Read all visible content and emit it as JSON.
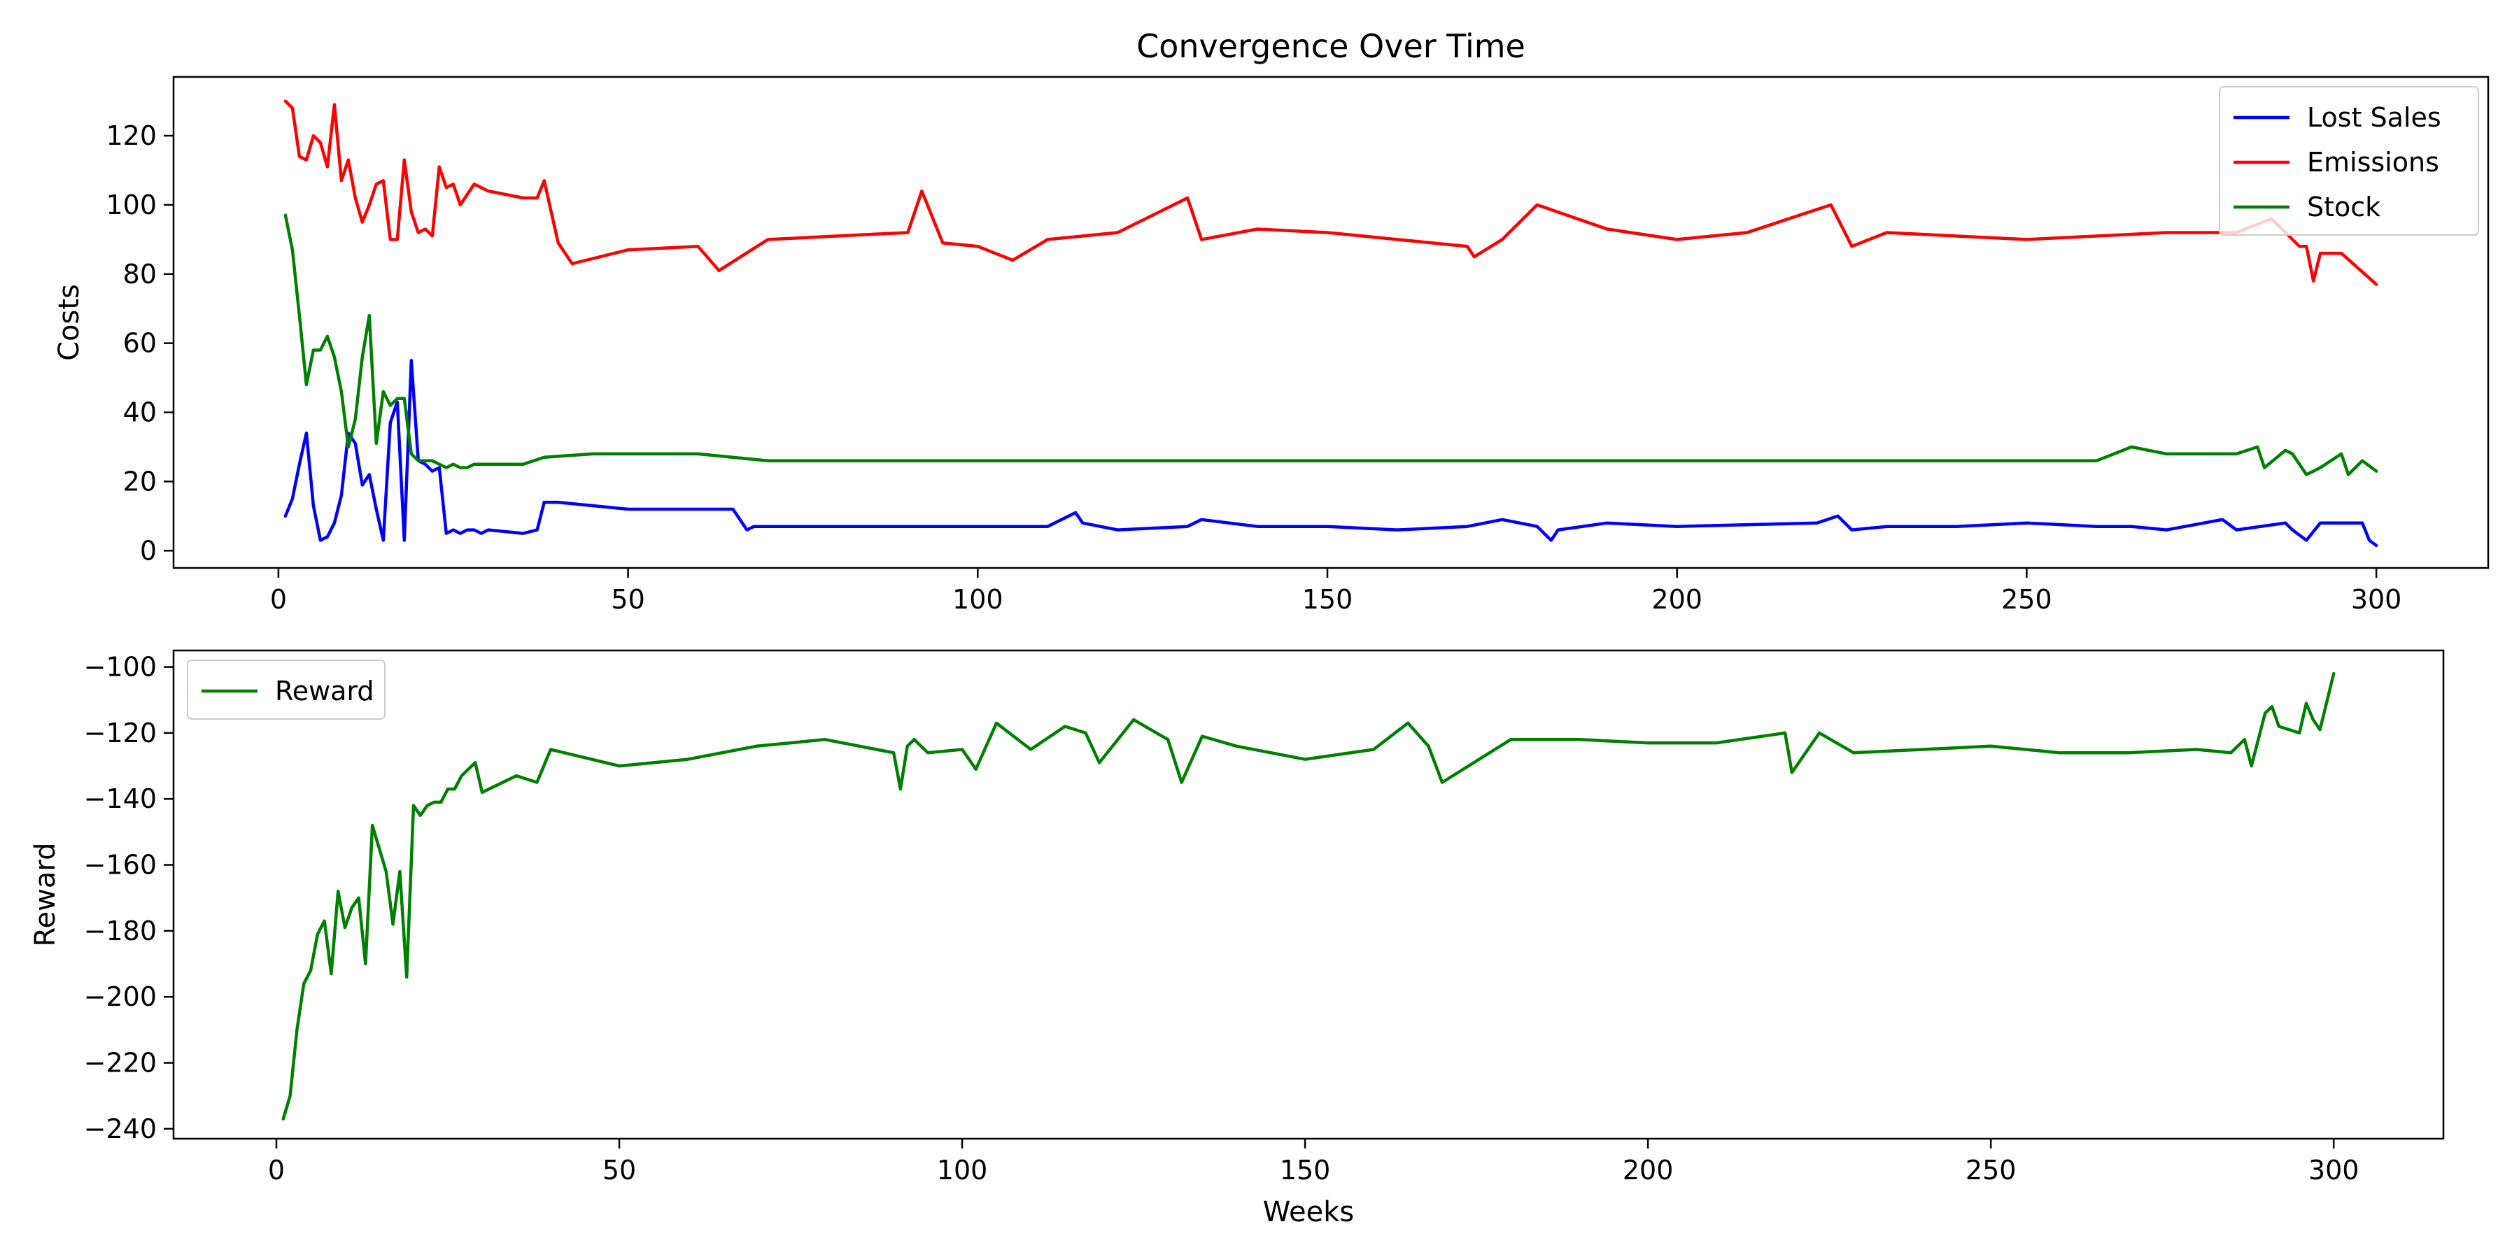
{
  "chart_data": [
    {
      "type": "line",
      "title": "Convergence Over Time",
      "xlabel": "",
      "ylabel": "Costs",
      "xlim": [
        -15,
        316
      ],
      "ylim": [
        -5,
        137
      ],
      "xticks": [
        0,
        50,
        100,
        150,
        200,
        250,
        300
      ],
      "yticks": [
        0,
        20,
        40,
        60,
        80,
        100,
        120
      ],
      "legend": "top-right",
      "grid": false,
      "series": [
        {
          "name": "Lost Sales",
          "color": "#0000ff",
          "x": [
            1,
            2,
            3,
            4,
            5,
            6,
            7,
            8,
            9,
            10,
            11,
            12,
            13,
            14,
            15,
            16,
            17,
            18,
            19,
            20,
            21,
            22,
            23,
            24,
            25,
            26,
            27,
            28,
            29,
            30,
            35,
            37,
            38,
            40,
            50,
            60,
            65,
            67,
            68,
            70,
            80,
            90,
            100,
            110,
            114,
            115,
            120,
            130,
            132,
            140,
            150,
            160,
            170,
            175,
            180,
            182,
            183,
            190,
            200,
            220,
            223,
            225,
            230,
            240,
            250,
            260,
            265,
            270,
            278,
            280,
            287,
            288,
            290,
            292,
            295,
            298,
            299,
            300
          ],
          "y": [
            10,
            15,
            25,
            34,
            13,
            3,
            4,
            8,
            16,
            34,
            31,
            19,
            22,
            12,
            3,
            37,
            43,
            3,
            55,
            26,
            25,
            23,
            24,
            5,
            6,
            5,
            6,
            6,
            5,
            6,
            5,
            6,
            14,
            14,
            12,
            12,
            12,
            6,
            7,
            7,
            7,
            7,
            7,
            7,
            11,
            8,
            6,
            7,
            9,
            7,
            7,
            6,
            7,
            9,
            7,
            3,
            6,
            8,
            7,
            8,
            10,
            6,
            7,
            7,
            8,
            7,
            7,
            6,
            9,
            6,
            8,
            6,
            3,
            8,
            8,
            8,
            3,
            1.5
          ]
        },
        {
          "name": "Emissions",
          "color": "#ff0000",
          "x": [
            1,
            2,
            3,
            4,
            5,
            6,
            7,
            8,
            9,
            10,
            11,
            12,
            13,
            14,
            15,
            16,
            17,
            18,
            19,
            20,
            21,
            22,
            23,
            24,
            25,
            26,
            27,
            28,
            29,
            30,
            35,
            37,
            38,
            40,
            42,
            50,
            60,
            63,
            70,
            80,
            90,
            92,
            95,
            100,
            105,
            110,
            120,
            130,
            132,
            140,
            150,
            160,
            170,
            171,
            175,
            180,
            190,
            200,
            210,
            222,
            225,
            230,
            250,
            270,
            280,
            285,
            289,
            290,
            291,
            292,
            295,
            300
          ],
          "y": [
            130,
            128,
            114,
            113,
            120,
            118,
            111,
            129,
            107,
            113,
            102,
            95,
            100,
            106,
            107,
            90,
            90,
            113,
            98,
            92,
            93,
            91,
            111,
            105,
            106,
            100,
            103,
            106,
            105,
            104,
            102,
            102,
            107,
            89,
            83,
            87,
            88,
            81,
            90,
            91,
            92,
            104,
            89,
            88,
            84,
            90,
            92,
            102,
            90,
            93,
            92,
            90,
            88,
            85,
            90,
            100,
            93,
            90,
            92,
            100,
            88,
            92,
            90,
            92,
            92,
            96,
            88,
            88,
            78,
            86,
            86,
            77
          ]
        },
        {
          "name": "Stock",
          "color": "#008000",
          "x": [
            1,
            2,
            3,
            4,
            5,
            6,
            7,
            8,
            9,
            10,
            11,
            12,
            13,
            14,
            15,
            16,
            17,
            18,
            19,
            20,
            21,
            22,
            23,
            24,
            25,
            26,
            27,
            28,
            29,
            30,
            35,
            38,
            45,
            50,
            60,
            70,
            80,
            100,
            150,
            200,
            250,
            260,
            265,
            270,
            280,
            283,
            284,
            287,
            288,
            290,
            291,
            292,
            295,
            296,
            298,
            300
          ],
          "y": [
            97,
            87,
            68,
            48,
            58,
            58,
            62,
            56,
            46,
            30,
            38,
            56,
            68,
            31,
            46,
            42,
            44,
            44,
            28,
            26,
            26,
            26,
            25,
            24,
            25,
            24,
            24,
            25,
            25,
            25,
            25,
            27,
            28,
            28,
            28,
            26,
            26,
            26,
            26,
            26,
            26,
            26,
            30,
            28,
            28,
            30,
            24,
            29,
            28,
            22,
            23,
            24,
            28,
            22,
            26,
            23
          ]
        }
      ]
    },
    {
      "type": "line",
      "title": "",
      "xlabel": "Weeks",
      "ylabel": "Reward",
      "xlim": [
        -15,
        316
      ],
      "ylim": [
        -243,
        -95
      ],
      "xticks": [
        0,
        50,
        100,
        150,
        200,
        250,
        300
      ],
      "yticks": [
        -240,
        -220,
        -200,
        -180,
        -160,
        -140,
        -120,
        -100
      ],
      "legend": "top-left",
      "grid": false,
      "series": [
        {
          "name": "Reward",
          "color": "#008000",
          "x": [
            1,
            2,
            3,
            4,
            5,
            6,
            7,
            8,
            9,
            10,
            11,
            12,
            13,
            14,
            15,
            16,
            17,
            18,
            19,
            20,
            21,
            22,
            23,
            24,
            25,
            26,
            27,
            28,
            29,
            30,
            35,
            38,
            40,
            50,
            60,
            65,
            70,
            80,
            90,
            91,
            92,
            93,
            95,
            100,
            102,
            105,
            110,
            115,
            118,
            120,
            125,
            130,
            132,
            135,
            140,
            150,
            160,
            165,
            168,
            170,
            180,
            190,
            200,
            210,
            220,
            221,
            225,
            230,
            240,
            250,
            260,
            270,
            280,
            285,
            287,
            288,
            290,
            291,
            292,
            295,
            296,
            297,
            298,
            300
          ],
          "y": [
            -237,
            -230,
            -210,
            -196,
            -192,
            -181,
            -177,
            -193,
            -168,
            -179,
            -173,
            -170,
            -190,
            -148,
            -155,
            -162,
            -178,
            -162,
            -194,
            -142,
            -145,
            -142,
            -141,
            -141,
            -137,
            -137,
            -133,
            -131,
            -129,
            -138,
            -133,
            -135,
            -125,
            -130,
            -128,
            -126,
            -124,
            -122,
            -126,
            -137,
            -124,
            -122,
            -126,
            -125,
            -131,
            -117,
            -125,
            -118,
            -120,
            -129,
            -116,
            -122,
            -135,
            -121,
            -124,
            -128,
            -125,
            -117,
            -124,
            -135,
            -122,
            -122,
            -123,
            -123,
            -120,
            -132,
            -120,
            -126,
            -125,
            -124,
            -126,
            -126,
            -125,
            -126,
            -122,
            -130,
            -114,
            -112,
            -118,
            -120,
            -111,
            -116,
            -119,
            -102
          ]
        }
      ]
    }
  ]
}
